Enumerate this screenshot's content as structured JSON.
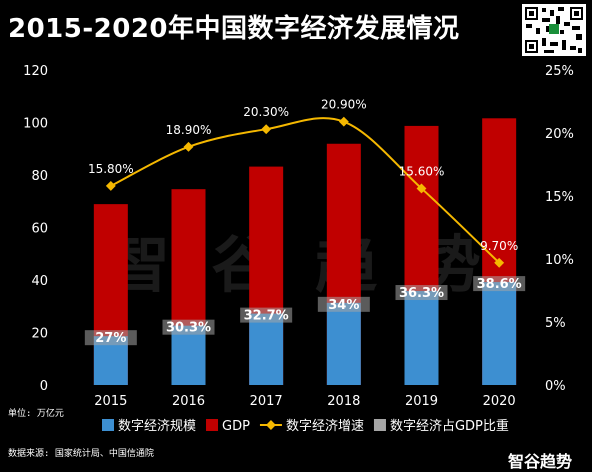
{
  "title": "2015-2020年中国数字经济发展情况",
  "unit_note": "单位: 万亿元",
  "source_note": "数据来源: 国家统计局、中国信通院",
  "brand": "智谷趋势",
  "watermark": "智 谷 趋 势",
  "chart_data": {
    "type": "bar",
    "title": "2015-2020年中国数字经济发展情况",
    "categories": [
      "2015",
      "2016",
      "2017",
      "2018",
      "2019",
      "2020"
    ],
    "ylim": [
      0,
      120
    ],
    "yticks": [
      "0",
      "20",
      "40",
      "60",
      "80",
      "100",
      "120"
    ],
    "y2lim": [
      0,
      25
    ],
    "y2ticks": [
      "0%",
      "5%",
      "10%",
      "15%",
      "20%",
      "25%"
    ],
    "grid": false,
    "legend_position": "bottom",
    "series": [
      {
        "name": "数字经济规模",
        "kind": "bar",
        "color": "#3d8fd1",
        "values": [
          18.6,
          22.6,
          27.2,
          31.3,
          35.8,
          39.2
        ]
      },
      {
        "name": "GDP",
        "kind": "bar",
        "color": "#c00000",
        "values": [
          68.9,
          74.6,
          83.2,
          91.9,
          98.7,
          101.6
        ]
      },
      {
        "name": "数字经济增速",
        "kind": "line",
        "axis": "right",
        "color": "#f5b800",
        "values": [
          15.8,
          18.9,
          20.3,
          20.9,
          15.6,
          9.7
        ],
        "labels": [
          "15.80%",
          "18.90%",
          "20.30%",
          "20.90%",
          "15.60%",
          "9.70%"
        ]
      },
      {
        "name": "数字经济占GDP比重",
        "kind": "label",
        "color": "#a6a6a6",
        "labels": [
          "27%",
          "30.3%",
          "32.7%",
          "34%",
          "36.3%",
          "38.6%"
        ]
      }
    ]
  }
}
